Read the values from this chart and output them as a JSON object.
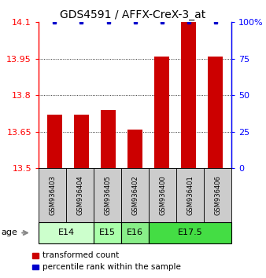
{
  "title": "GDS4591 / AFFX-CreX-3_at",
  "samples": [
    "GSM936403",
    "GSM936404",
    "GSM936405",
    "GSM936402",
    "GSM936400",
    "GSM936401",
    "GSM936406"
  ],
  "red_values": [
    13.72,
    13.72,
    13.74,
    13.66,
    13.96,
    14.1,
    13.96
  ],
  "blue_values": [
    100,
    100,
    100,
    100,
    100,
    100,
    100
  ],
  "ylim_left": [
    13.5,
    14.1
  ],
  "ylim_right": [
    0,
    100
  ],
  "yticks_left": [
    13.5,
    13.65,
    13.8,
    13.95,
    14.1
  ],
  "yticks_right": [
    0,
    25,
    50,
    75,
    100
  ],
  "ytick_labels_right": [
    "0",
    "25",
    "50",
    "75",
    "100%"
  ],
  "groups": [
    {
      "label": "E14",
      "start": 0,
      "end": 2,
      "color": "#ccffcc"
    },
    {
      "label": "E15",
      "start": 2,
      "end": 3,
      "color": "#aaffaa"
    },
    {
      "label": "E16",
      "start": 3,
      "end": 4,
      "color": "#88ee88"
    },
    {
      "label": "E17.5",
      "start": 4,
      "end": 7,
      "color": "#44dd44"
    }
  ],
  "bar_color": "#cc0000",
  "dot_color": "#0000cc",
  "bg_color": "#cccccc",
  "legend_red": "transformed count",
  "legend_blue": "percentile rank within the sample",
  "age_label": "age",
  "title_fontsize": 10,
  "tick_fontsize": 8,
  "label_fontsize": 8
}
